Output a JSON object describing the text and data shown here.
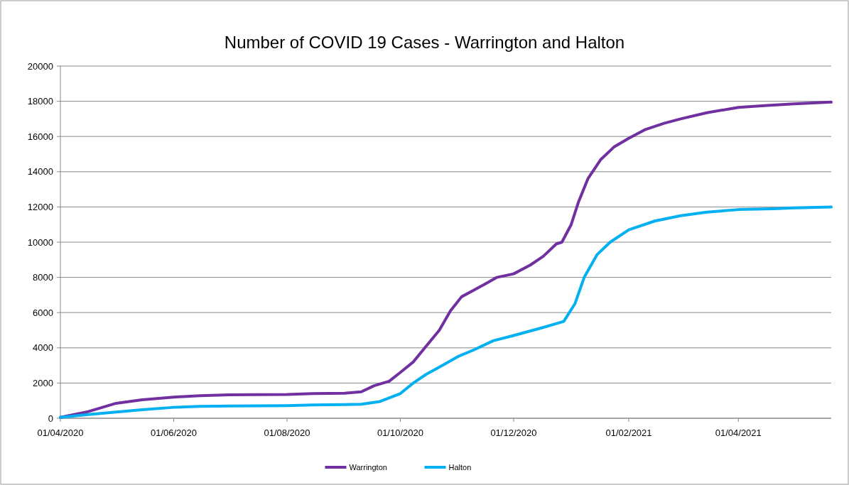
{
  "chart_data": {
    "type": "line",
    "title": "Number of COVID 19 Cases - Warrington and Halton",
    "xlim": [
      "2020-04-01",
      "2021-05-21"
    ],
    "xticks": [
      {
        "value": "2020-04-01",
        "label": "01/04/2020"
      },
      {
        "value": "2020-06-01",
        "label": "01/06/2020"
      },
      {
        "value": "2020-08-01",
        "label": "01/08/2020"
      },
      {
        "value": "2020-10-01",
        "label": "01/10/2020"
      },
      {
        "value": "2020-12-01",
        "label": "01/12/2020"
      },
      {
        "value": "2021-02-01",
        "label": "01/02/2021"
      },
      {
        "value": "2021-04-01",
        "label": "01/04/2021"
      }
    ],
    "ylim": [
      0,
      20000
    ],
    "yticks": [
      0,
      2000,
      4000,
      6000,
      8000,
      10000,
      12000,
      14000,
      16000,
      18000,
      20000
    ],
    "grid": "y",
    "legend": "bottom",
    "line_style": "solid",
    "series": [
      {
        "name": "Warrington",
        "color": "#7030a0",
        "x": [
          "2020-04-01",
          "2020-04-15",
          "2020-05-01",
          "2020-05-15",
          "2020-06-01",
          "2020-06-15",
          "2020-07-01",
          "2020-07-15",
          "2020-08-01",
          "2020-08-15",
          "2020-09-01",
          "2020-09-10",
          "2020-09-17",
          "2020-09-25",
          "2020-10-01",
          "2020-10-08",
          "2020-10-15",
          "2020-10-22",
          "2020-10-28",
          "2020-11-03",
          "2020-11-10",
          "2020-11-17",
          "2020-11-22",
          "2020-12-01",
          "2020-12-10",
          "2020-12-17",
          "2020-12-24",
          "2020-12-27",
          "2021-01-01",
          "2021-01-05",
          "2021-01-10",
          "2021-01-17",
          "2021-01-24",
          "2021-02-01",
          "2021-02-10",
          "2021-02-20",
          "2021-03-01",
          "2021-03-15",
          "2021-04-01",
          "2021-04-15",
          "2021-05-01",
          "2021-05-21"
        ],
        "values": [
          50,
          350,
          850,
          1050,
          1200,
          1280,
          1330,
          1340,
          1350,
          1400,
          1420,
          1500,
          1850,
          2100,
          2600,
          3200,
          4100,
          5000,
          6100,
          6900,
          7300,
          7700,
          8000,
          8200,
          8700,
          9200,
          9900,
          10000,
          11000,
          12300,
          13600,
          14700,
          15400,
          15900,
          16400,
          16750,
          17000,
          17350,
          17650,
          17750,
          17850,
          17950
        ]
      },
      {
        "name": "Halton",
        "color": "#00b0f0",
        "x": [
          "2020-04-01",
          "2020-04-15",
          "2020-05-01",
          "2020-05-15",
          "2020-06-01",
          "2020-06-15",
          "2020-07-01",
          "2020-08-01",
          "2020-08-15",
          "2020-09-01",
          "2020-09-10",
          "2020-09-20",
          "2020-10-01",
          "2020-10-08",
          "2020-10-15",
          "2020-10-22",
          "2020-11-01",
          "2020-11-10",
          "2020-11-20",
          "2020-12-01",
          "2020-12-15",
          "2020-12-28",
          "2021-01-03",
          "2021-01-08",
          "2021-01-15",
          "2021-01-22",
          "2021-02-01",
          "2021-02-15",
          "2021-03-01",
          "2021-03-15",
          "2021-04-01",
          "2021-04-20",
          "2021-05-01",
          "2021-05-21"
        ],
        "values": [
          50,
          200,
          350,
          480,
          620,
          680,
          700,
          720,
          760,
          780,
          800,
          950,
          1400,
          2000,
          2500,
          2900,
          3500,
          3900,
          4400,
          4700,
          5100,
          5500,
          6500,
          8000,
          9300,
          10000,
          10700,
          11200,
          11500,
          11700,
          11850,
          11900,
          11950,
          12000
        ]
      }
    ]
  }
}
